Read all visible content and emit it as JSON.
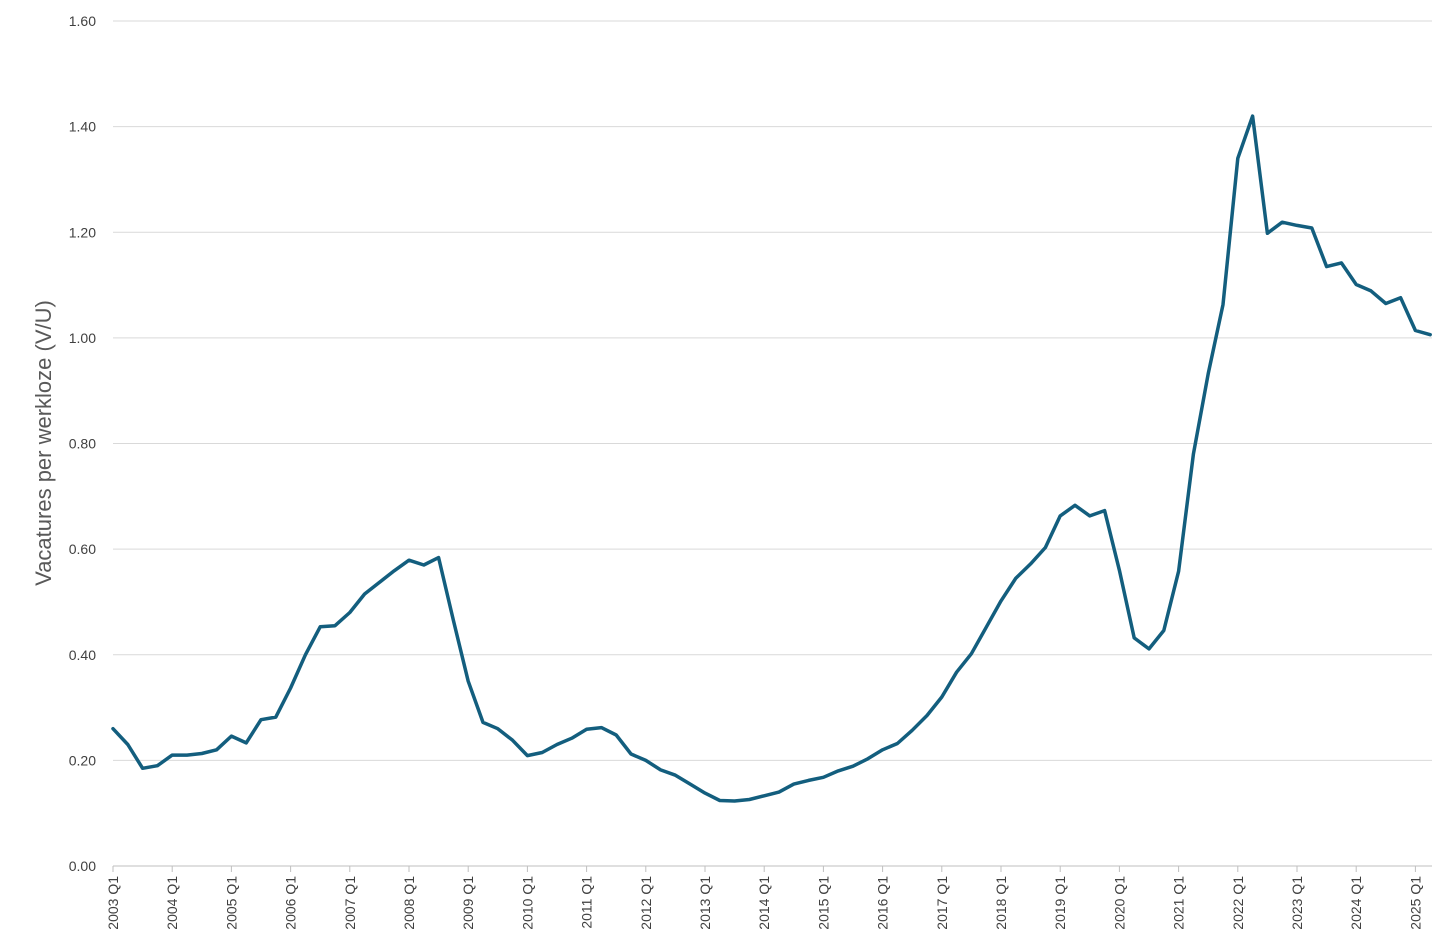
{
  "chart_data": {
    "type": "line",
    "title": "",
    "xlabel": "",
    "ylabel": "Vacatures per werkloze (V/U)",
    "ylim": [
      0,
      1.6
    ],
    "ytick_labels": [
      "0.00",
      "0.20",
      "0.40",
      "0.60",
      "0.80",
      "1.00",
      "1.20",
      "1.40",
      "1.60"
    ],
    "xtick_labels": [
      "2003 Q1",
      "2004 Q1",
      "2005 Q1",
      "2006 Q1",
      "2007 Q1",
      "2008 Q1",
      "2009 Q1",
      "2010 Q1",
      "2011 Q1",
      "2012 Q1",
      "2013 Q1",
      "2014 Q1",
      "2015 Q1",
      "2016 Q1",
      "2017 Q1",
      "2018 Q1",
      "2019 Q1",
      "2020 Q1",
      "2021 Q1",
      "2022 Q1",
      "2023 Q1",
      "2024 Q1",
      "2025 Q1"
    ],
    "grid": true,
    "legend": "none",
    "color": "#135e7e",
    "series": [
      {
        "values": [
          0.26,
          0.23,
          0.185,
          0.19,
          0.21,
          0.21,
          0.213,
          0.22,
          0.246,
          0.233,
          0.277,
          0.282,
          0.337,
          0.4,
          0.453,
          0.455,
          0.48,
          0.515,
          0.537,
          0.559,
          0.579,
          0.57,
          0.584,
          0.465,
          0.35,
          0.272,
          0.26,
          0.238,
          0.209,
          0.215,
          0.23,
          0.242,
          0.259,
          0.262,
          0.248,
          0.212,
          0.2,
          0.182,
          0.172,
          0.155,
          0.138,
          0.124,
          0.123,
          0.126,
          0.133,
          0.14,
          0.155,
          0.162,
          0.168,
          0.18,
          0.189,
          0.203,
          0.22,
          0.232,
          0.257,
          0.285,
          0.32,
          0.367,
          0.402,
          0.452,
          0.502,
          0.545,
          0.572,
          0.603,
          0.663,
          0.683,
          0.663,
          0.673,
          0.56,
          0.432,
          0.411,
          0.446,
          0.558,
          0.78,
          0.932,
          1.063,
          1.34,
          1.42,
          1.198,
          1.219,
          1.213,
          1.208,
          1.135,
          1.142,
          1.101,
          1.089,
          1.065,
          1.076,
          1.014,
          1.006
        ]
      }
    ]
  }
}
